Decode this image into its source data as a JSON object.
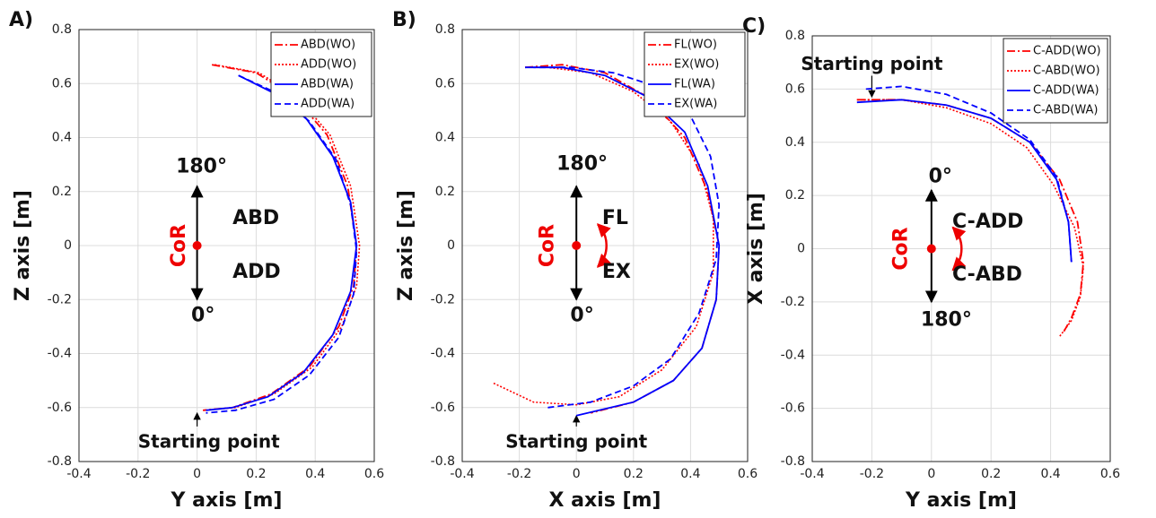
{
  "chart_data": [
    {
      "type": "line",
      "panel_label": "A)",
      "xlabel": "Y axis [m]",
      "ylabel": "Z axis [m]",
      "xlim": [
        -0.4,
        0.6
      ],
      "xticks": [
        -0.4,
        -0.2,
        0,
        0.2,
        0.4,
        0.6
      ],
      "ylim": [
        -0.8,
        0.8
      ],
      "yticks": [
        -0.8,
        -0.6,
        -0.4,
        -0.2,
        0,
        0.2,
        0.4,
        0.6,
        0.8
      ],
      "grid": true,
      "legend": "upper right",
      "annotations": [
        "180°",
        "ABD",
        "ADD",
        "0°",
        "CoR",
        "Starting point"
      ],
      "series": [
        {
          "name": "ABD(WO)",
          "color": "#ff0000",
          "dash": "dashdot",
          "x": [
            0.05,
            0.2,
            0.33,
            0.44,
            0.51,
            0.54,
            0.53,
            0.48,
            0.38,
            0.25,
            0.12,
            0.02
          ],
          "values": [
            0.67,
            0.64,
            0.55,
            0.41,
            0.22,
            0.0,
            -0.15,
            -0.3,
            -0.45,
            -0.55,
            -0.6,
            -0.61
          ]
        },
        {
          "name": "ADD(WO)",
          "color": "#ff0000",
          "dash": "dotted",
          "x": [
            0.06,
            0.21,
            0.34,
            0.45,
            0.52,
            0.55,
            0.54,
            0.49,
            0.39,
            0.26,
            0.13,
            0.02
          ],
          "values": [
            0.67,
            0.64,
            0.55,
            0.41,
            0.22,
            0.0,
            -0.15,
            -0.3,
            -0.45,
            -0.55,
            -0.6,
            -0.61
          ]
        },
        {
          "name": "ABD(WA)",
          "color": "#0000ff",
          "dash": "solid",
          "x": [
            0.14,
            0.25,
            0.37,
            0.46,
            0.52,
            0.54,
            0.52,
            0.46,
            0.36,
            0.24,
            0.12,
            0.03
          ],
          "values": [
            0.63,
            0.57,
            0.47,
            0.33,
            0.16,
            0.0,
            -0.17,
            -0.33,
            -0.47,
            -0.56,
            -0.6,
            -0.61
          ]
        },
        {
          "name": "ADD(WA)",
          "color": "#0000ff",
          "dash": "dashed",
          "x": [
            0.14,
            0.26,
            0.38,
            0.47,
            0.52,
            0.54,
            0.53,
            0.48,
            0.38,
            0.26,
            0.13,
            0.03
          ],
          "values": [
            0.63,
            0.57,
            0.46,
            0.32,
            0.15,
            -0.02,
            -0.18,
            -0.34,
            -0.48,
            -0.57,
            -0.61,
            -0.62
          ]
        }
      ]
    },
    {
      "type": "line",
      "panel_label": "B)",
      "xlabel": "X axis [m]",
      "ylabel": "Z axis [m]",
      "xlim": [
        -0.4,
        0.6
      ],
      "xticks": [
        -0.4,
        -0.2,
        0,
        0.2,
        0.4,
        0.6
      ],
      "ylim": [
        -0.8,
        0.8
      ],
      "yticks": [
        -0.8,
        -0.6,
        -0.4,
        -0.2,
        0,
        0.2,
        0.4,
        0.6,
        0.8
      ],
      "grid": true,
      "legend": "upper right",
      "annotations": [
        "180°",
        "FL",
        "EX",
        "0°",
        "CoR",
        "Starting point"
      ],
      "series": [
        {
          "name": "FL(WO)",
          "color": "#ff0000",
          "dash": "dashdot",
          "x": [
            -0.18,
            -0.05,
            0.1,
            0.25,
            0.38,
            0.46,
            0.5,
            0.49,
            0.44,
            0.34,
            0.2,
            0.05
          ],
          "values": [
            0.66,
            0.67,
            0.64,
            0.55,
            0.4,
            0.2,
            0.0,
            -0.2,
            -0.38,
            -0.5,
            -0.58,
            -0.62
          ]
        },
        {
          "name": "EX(WO)",
          "color": "#ff0000",
          "dash": "dotted",
          "x": [
            -0.29,
            -0.15,
            0.0,
            0.15,
            0.3,
            0.42,
            0.48,
            0.48,
            0.43,
            0.33,
            0.2,
            0.05,
            -0.1,
            -0.18
          ],
          "values": [
            -0.51,
            -0.58,
            -0.59,
            -0.56,
            -0.46,
            -0.3,
            -0.1,
            0.1,
            0.3,
            0.46,
            0.57,
            0.64,
            0.66,
            0.66
          ]
        },
        {
          "name": "FL(WA)",
          "color": "#0000ff",
          "dash": "solid",
          "x": [
            -0.18,
            -0.05,
            0.1,
            0.25,
            0.38,
            0.46,
            0.5,
            0.49,
            0.44,
            0.34,
            0.2,
            0.0
          ],
          "values": [
            0.66,
            0.66,
            0.63,
            0.55,
            0.42,
            0.22,
            0.0,
            -0.2,
            -0.38,
            -0.5,
            -0.58,
            -0.63
          ]
        },
        {
          "name": "EX(WA)",
          "color": "#0000ff",
          "dash": "dashed",
          "x": [
            -0.1,
            0.05,
            0.2,
            0.33,
            0.43,
            0.49,
            0.5,
            0.47,
            0.4,
            0.28,
            0.13,
            -0.02,
            -0.15
          ],
          "values": [
            -0.6,
            -0.58,
            -0.52,
            -0.42,
            -0.25,
            -0.05,
            0.15,
            0.33,
            0.48,
            0.59,
            0.64,
            0.66,
            0.66
          ]
        }
      ]
    },
    {
      "type": "line",
      "panel_label": "C)",
      "xlabel": "Y axis [m]",
      "ylabel": "X axis [m]",
      "xlim": [
        -0.4,
        0.6
      ],
      "xticks": [
        -0.4,
        -0.2,
        0,
        0.2,
        0.4,
        0.6
      ],
      "ylim": [
        -0.8,
        0.8
      ],
      "yticks": [
        -0.8,
        -0.6,
        -0.4,
        -0.2,
        0,
        0.2,
        0.4,
        0.6,
        0.8
      ],
      "grid": true,
      "legend": "upper right",
      "annotations": [
        "Starting point",
        "0°",
        "C-ADD",
        "C-ABD",
        "180°",
        "CoR"
      ],
      "series": [
        {
          "name": "C-ADD(WO)",
          "color": "#ff0000",
          "dash": "dashdot",
          "x": [
            -0.25,
            -0.1,
            0.05,
            0.2,
            0.33,
            0.43,
            0.49,
            0.51,
            0.5,
            0.47,
            0.44
          ],
          "values": [
            0.56,
            0.56,
            0.54,
            0.49,
            0.4,
            0.26,
            0.1,
            -0.05,
            -0.17,
            -0.26,
            -0.32
          ]
        },
        {
          "name": "C-ABD(WO)",
          "color": "#ff0000",
          "dash": "dotted",
          "x": [
            -0.25,
            -0.1,
            0.05,
            0.2,
            0.32,
            0.41,
            0.48,
            0.51,
            0.5,
            0.47,
            0.43
          ],
          "values": [
            0.56,
            0.56,
            0.53,
            0.47,
            0.38,
            0.24,
            0.08,
            -0.07,
            -0.18,
            -0.27,
            -0.33
          ]
        },
        {
          "name": "C-ADD(WA)",
          "color": "#0000ff",
          "dash": "solid",
          "x": [
            -0.25,
            -0.1,
            0.05,
            0.2,
            0.33,
            0.42,
            0.46,
            0.47
          ],
          "values": [
            0.55,
            0.56,
            0.54,
            0.49,
            0.4,
            0.26,
            0.1,
            -0.05
          ]
        },
        {
          "name": "C-ABD(WA)",
          "color": "#0000ff",
          "dash": "dashed",
          "x": [
            -0.22,
            -0.1,
            0.05,
            0.2,
            0.33,
            0.42,
            0.46,
            0.47
          ],
          "values": [
            0.6,
            0.61,
            0.58,
            0.51,
            0.41,
            0.27,
            0.1,
            -0.05
          ]
        }
      ]
    }
  ]
}
